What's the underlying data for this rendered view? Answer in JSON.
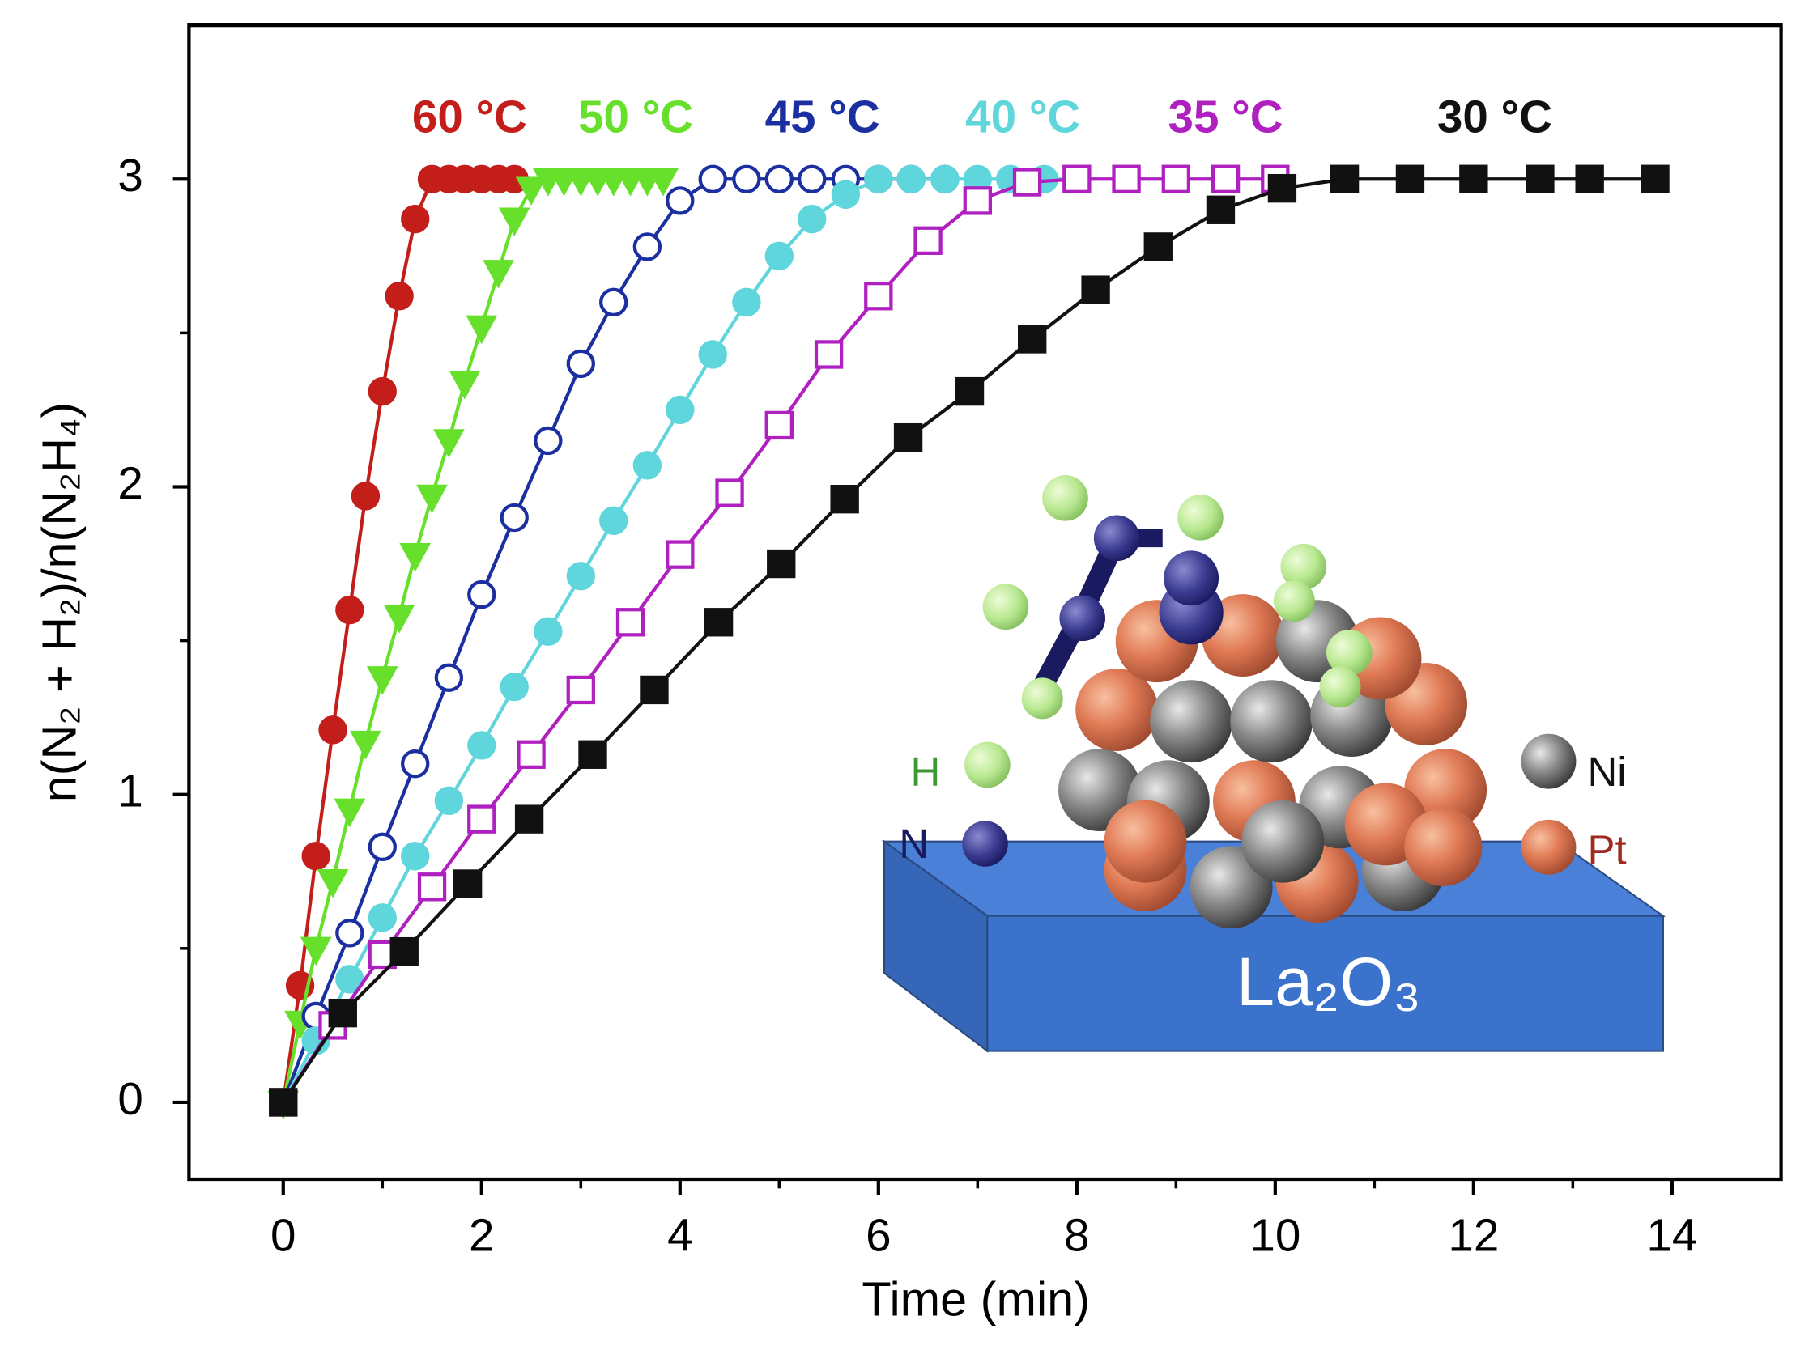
{
  "chart_data": {
    "type": "line",
    "x_label": "Time (min)",
    "y_label": "n(N₂ + H₂)/n(N₂H₄)",
    "xlim": [
      -0.95,
      15.1
    ],
    "ylim": [
      -0.25,
      3.5
    ],
    "xticks": [
      0,
      2,
      4,
      6,
      8,
      10,
      12,
      14
    ],
    "yticks": [
      0,
      1,
      2,
      3
    ],
    "series": [
      {
        "name": "60 °C",
        "color": "#c41e1a",
        "marker": "circle",
        "x": [
          0,
          0.17,
          0.33,
          0.5,
          0.67,
          0.83,
          1,
          1.17,
          1.33,
          1.5,
          1.67,
          1.83,
          2,
          2.17,
          2.33
        ],
        "values": [
          0,
          0.38,
          0.8,
          1.21,
          1.6,
          1.97,
          2.31,
          2.62,
          2.87,
          3,
          3,
          3,
          3,
          3,
          3
        ]
      },
      {
        "name": "50 °C",
        "color": "#66e02a",
        "marker": "triangle-down",
        "x": [
          0,
          0.17,
          0.33,
          0.5,
          0.67,
          0.83,
          1,
          1.17,
          1.33,
          1.5,
          1.67,
          1.83,
          2,
          2.17,
          2.33,
          2.5,
          2.67,
          2.83,
          3,
          3.17,
          3.33,
          3.5,
          3.67,
          3.83
        ],
        "values": [
          0,
          0.26,
          0.5,
          0.72,
          0.95,
          1.17,
          1.38,
          1.58,
          1.78,
          1.97,
          2.15,
          2.34,
          2.52,
          2.7,
          2.87,
          2.97,
          3,
          3,
          3,
          3,
          3,
          3,
          3,
          3
        ]
      },
      {
        "name": "45 °C",
        "color": "#1b2fa0",
        "marker": "circle-open",
        "x": [
          0,
          0.33,
          0.67,
          1,
          1.33,
          1.67,
          2,
          2.33,
          2.67,
          3,
          3.33,
          3.67,
          4,
          4.33,
          4.67,
          5,
          5.33,
          5.67,
          6,
          6.33,
          6.67
        ],
        "values": [
          0,
          0.28,
          0.55,
          0.83,
          1.1,
          1.38,
          1.65,
          1.9,
          2.15,
          2.4,
          2.6,
          2.78,
          2.93,
          3,
          3,
          3,
          3,
          3,
          3,
          3,
          3
        ]
      },
      {
        "name": "40 °C",
        "color": "#5fd6dc",
        "marker": "circle",
        "x": [
          0,
          0.33,
          0.67,
          1,
          1.33,
          1.67,
          2,
          2.33,
          2.67,
          3,
          3.33,
          3.67,
          4,
          4.33,
          4.67,
          5,
          5.33,
          5.67,
          6,
          6.33,
          6.67,
          7,
          7.33,
          7.67,
          8
        ],
        "values": [
          0,
          0.2,
          0.4,
          0.6,
          0.8,
          0.98,
          1.16,
          1.35,
          1.53,
          1.71,
          1.89,
          2.07,
          2.25,
          2.43,
          2.6,
          2.75,
          2.87,
          2.95,
          3,
          3,
          3,
          3,
          3,
          3,
          3
        ]
      },
      {
        "name": "35 °C",
        "color": "#b020c0",
        "marker": "square-open",
        "x": [
          0,
          0.5,
          1,
          1.5,
          2,
          2.5,
          3,
          3.5,
          4,
          4.5,
          5,
          5.5,
          6,
          6.5,
          7,
          7.5,
          8,
          8.5,
          9,
          9.5,
          10
        ],
        "values": [
          0,
          0.25,
          0.48,
          0.7,
          0.92,
          1.13,
          1.34,
          1.56,
          1.78,
          1.98,
          2.2,
          2.43,
          2.62,
          2.8,
          2.93,
          2.99,
          3,
          3,
          3,
          3,
          3
        ]
      },
      {
        "name": "30 °C",
        "color": "#111111",
        "marker": "square",
        "x": [
          0,
          0.6,
          1.22,
          1.86,
          2.48,
          3.12,
          3.74,
          4.39,
          5.02,
          5.66,
          6.3,
          6.92,
          7.55,
          8.19,
          8.82,
          9.45,
          10.07,
          10.7,
          11.36,
          12,
          12.67,
          13.17,
          13.83
        ],
        "values": [
          0,
          0.29,
          0.49,
          0.71,
          0.92,
          1.13,
          1.34,
          1.56,
          1.75,
          1.96,
          2.16,
          2.31,
          2.48,
          2.64,
          2.78,
          2.9,
          2.97,
          3,
          3,
          3,
          3,
          3,
          3
        ]
      }
    ]
  },
  "inset": {
    "labels": [
      "H",
      "N",
      "Ni",
      "Pt"
    ],
    "substrate": "La₂O₃"
  }
}
